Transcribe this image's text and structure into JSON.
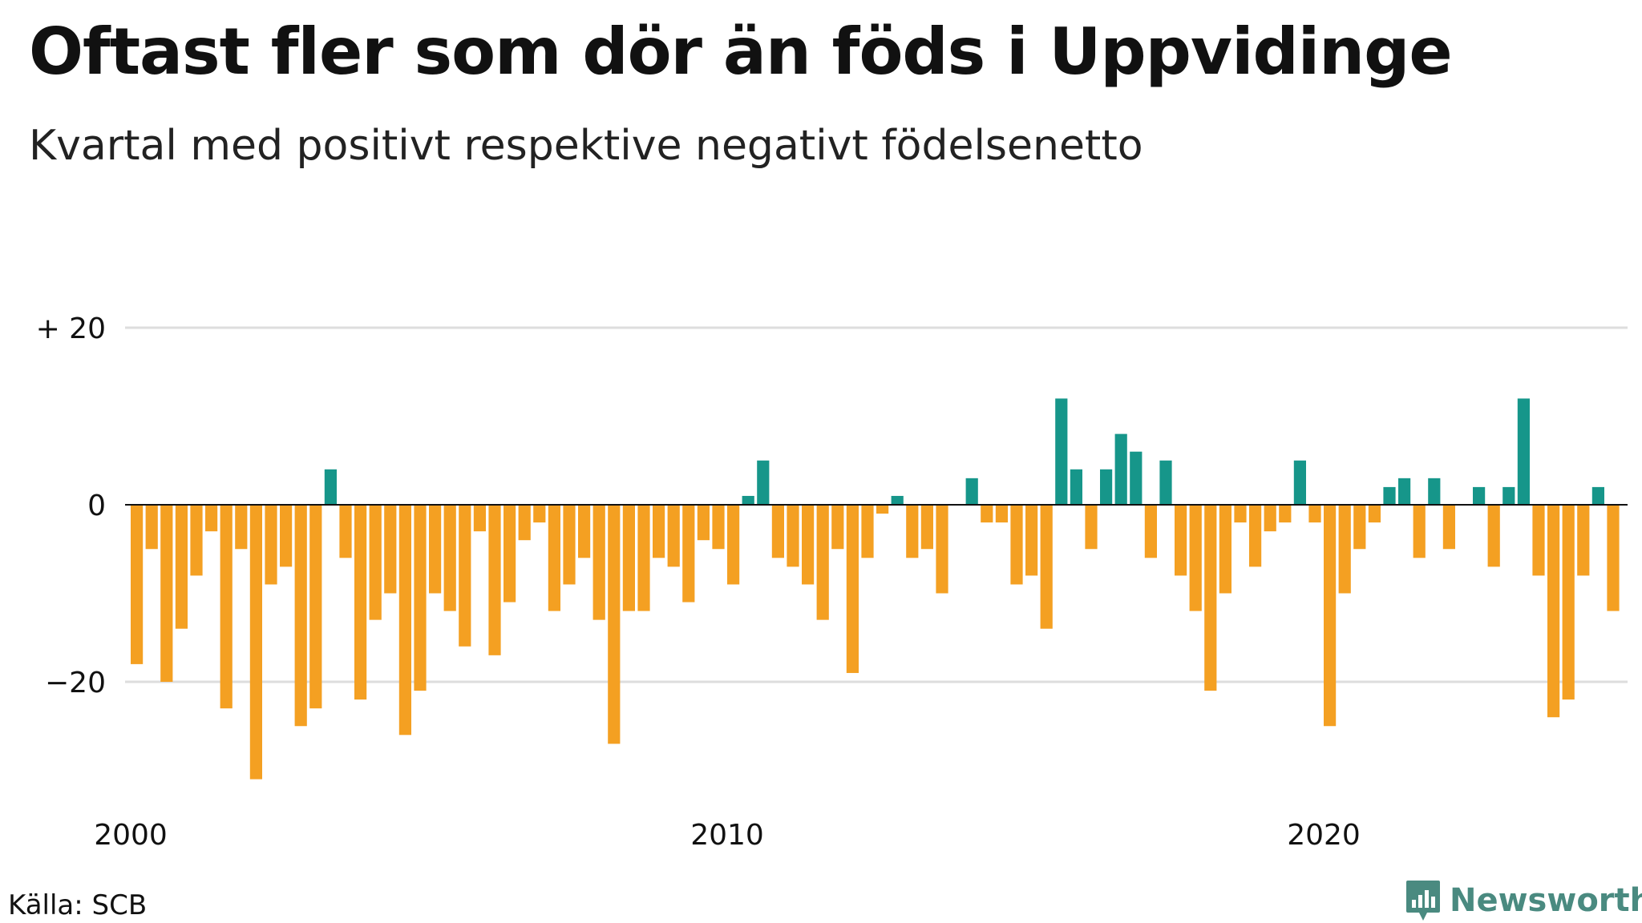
{
  "title": "Oftast fler som dör än föds i Uppvidinge",
  "subtitle": "Kvartal med positivt respektive negativt födelsenetto",
  "source": "Källa: SCB",
  "brand": "Newsworthy",
  "colors": {
    "positive": "#16968a",
    "negative": "#f4a022",
    "grid": "#dddddd",
    "zero": "#111111"
  },
  "chart_data": {
    "type": "bar",
    "title": "Oftast fler som dör än föds i Uppvidinge",
    "subtitle": "Kvartal med positivt respektive negativt födelsenetto",
    "xlabel": "",
    "ylabel": "",
    "ylim": [
      -32,
      22
    ],
    "y_ticks": [
      {
        "value": 20,
        "label": "+ 20"
      },
      {
        "value": 0,
        "label": "0"
      },
      {
        "value": -20,
        "label": "−20"
      }
    ],
    "x_ticks": [
      {
        "quarter_index": 0,
        "label": "2000"
      },
      {
        "quarter_index": 40,
        "label": "2010"
      },
      {
        "quarter_index": 80,
        "label": "2020"
      }
    ],
    "grid": true,
    "period": "quarterly, 2000 Q1 – 2024 Q4",
    "values": [
      -18,
      -5,
      -20,
      -14,
      -8,
      -3,
      -23,
      -5,
      -31,
      -9,
      -7,
      -25,
      -23,
      4,
      -6,
      -22,
      -13,
      -10,
      -26,
      -21,
      -10,
      -12,
      -16,
      -3,
      -17,
      -11,
      -4,
      -2,
      -12,
      -9,
      -6,
      -13,
      -27,
      -12,
      -12,
      -6,
      -7,
      -11,
      -4,
      -5,
      -9,
      1,
      5,
      -6,
      -7,
      -9,
      -13,
      -5,
      -19,
      -6,
      -1,
      1,
      -6,
      -5,
      -10,
      0,
      3,
      -2,
      -2,
      -9,
      -8,
      -14,
      12,
      4,
      -5,
      4,
      8,
      6,
      -6,
      5,
      -8,
      -12,
      -21,
      -10,
      -2,
      -7,
      -3,
      -2,
      5,
      -2,
      -25,
      -10,
      -5,
      -2,
      2,
      3,
      -6,
      3,
      -5,
      0,
      2,
      -7,
      2,
      12,
      -8,
      -24,
      -22,
      -8,
      2,
      -12
    ]
  }
}
